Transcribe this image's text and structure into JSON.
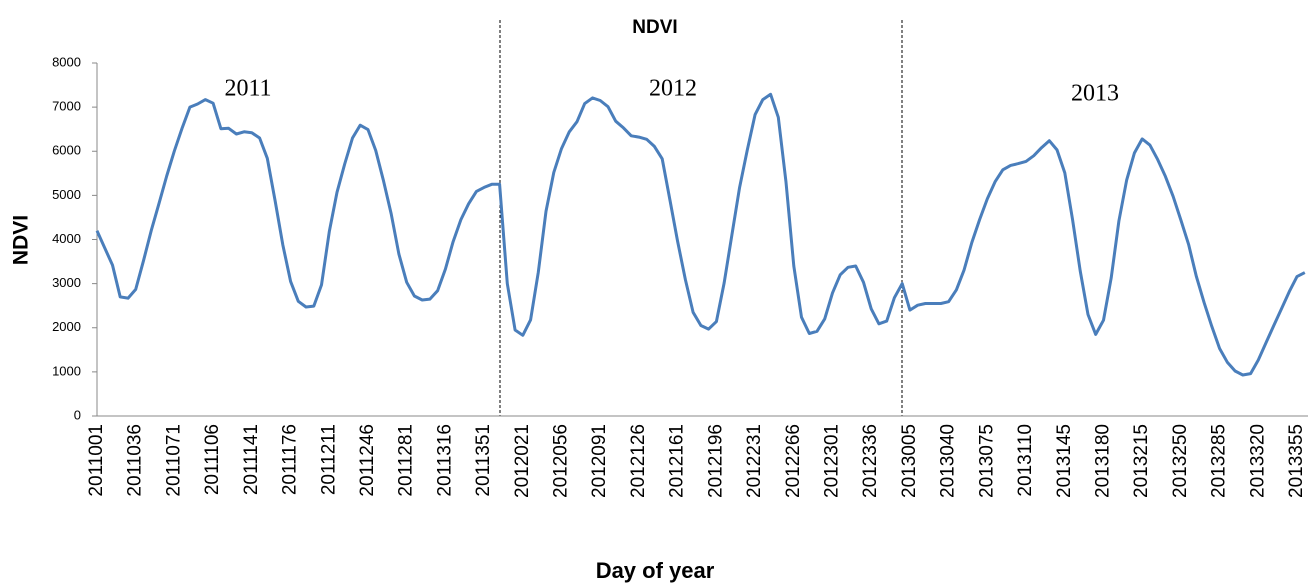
{
  "chart_data": {
    "type": "line",
    "title": "NDVI",
    "xlabel": "Day of year",
    "ylabel": "NDVI",
    "annotations": [
      "2011",
      "2012",
      "2013"
    ],
    "categories": [
      "2011001",
      null,
      null,
      null,
      null,
      "2011036",
      null,
      null,
      null,
      null,
      "2011071",
      null,
      null,
      null,
      null,
      "2011106",
      null,
      null,
      null,
      null,
      "2011141",
      null,
      null,
      null,
      null,
      "2011176",
      null,
      null,
      null,
      null,
      "2011211",
      null,
      null,
      null,
      null,
      "2011246",
      null,
      null,
      null,
      null,
      "2011281",
      null,
      null,
      null,
      null,
      "2011316",
      null,
      null,
      null,
      null,
      "2011351",
      null,
      null,
      null,
      null,
      "2012021",
      null,
      null,
      null,
      null,
      "2012056",
      null,
      null,
      null,
      null,
      "2012091",
      null,
      null,
      null,
      null,
      "2012126",
      null,
      null,
      null,
      null,
      "2012161",
      null,
      null,
      null,
      null,
      "2012196",
      null,
      null,
      null,
      null,
      "2012231",
      null,
      null,
      null,
      null,
      "2012266",
      null,
      null,
      null,
      null,
      "2012301",
      null,
      null,
      null,
      null,
      "2012336",
      null,
      null,
      null,
      null,
      "2013005",
      null,
      null,
      null,
      null,
      "2013040",
      null,
      null,
      null,
      null,
      "2013075",
      null,
      null,
      null,
      null,
      "2013110",
      null,
      null,
      null,
      null,
      "2013145",
      null,
      null,
      null,
      null,
      "2013180",
      null,
      null,
      null,
      null,
      "2013215",
      null,
      null,
      null,
      null,
      "2013250",
      null,
      null,
      null,
      null,
      "2013285",
      null,
      null,
      null,
      null,
      "2013320",
      null,
      null,
      null,
      null,
      "2013355",
      null
    ],
    "series": [
      {
        "name": "NDVI",
        "color": "#4a7ebb",
        "values": [
          4200,
          3810,
          3420,
          2700,
          2670,
          2870,
          3520,
          4200,
          4810,
          5440,
          6010,
          6530,
          7000,
          7070,
          7170,
          7090,
          6510,
          6520,
          6390,
          6440,
          6420,
          6300,
          5840,
          4880,
          3880,
          3050,
          2600,
          2470,
          2490,
          2970,
          4180,
          5070,
          5710,
          6300,
          6590,
          6490,
          6020,
          5330,
          4580,
          3670,
          3030,
          2720,
          2630,
          2650,
          2840,
          3330,
          3950,
          4450,
          4810,
          5090,
          5180,
          5250,
          5250,
          3000,
          1950,
          1830,
          2180,
          3260,
          4640,
          5520,
          6060,
          6440,
          6670,
          7080,
          7210,
          7150,
          7010,
          6680,
          6530,
          6350,
          6320,
          6270,
          6110,
          5830,
          4900,
          3960,
          3090,
          2350,
          2050,
          1970,
          2140,
          3010,
          4090,
          5180,
          6030,
          6830,
          7170,
          7290,
          6770,
          5300,
          3400,
          2240,
          1870,
          1920,
          2200,
          2790,
          3200,
          3370,
          3400,
          3030,
          2430,
          2090,
          2150,
          2680,
          3000,
          2400,
          2510,
          2550,
          2550,
          2550,
          2590,
          2860,
          3310,
          3930,
          4450,
          4920,
          5310,
          5580,
          5680,
          5720,
          5770,
          5900,
          6080,
          6240,
          6030,
          5510,
          4460,
          3290,
          2300,
          1850,
          2170,
          3130,
          4420,
          5350,
          5960,
          6280,
          6140,
          5810,
          5430,
          4980,
          4440,
          3890,
          3160,
          2570,
          2030,
          1530,
          1220,
          1020,
          930,
          960,
          1270,
          1660,
          2050,
          2430,
          2820,
          3160,
          3250
        ]
      }
    ],
    "ylim": [
      0,
      8000
    ],
    "yticks": [
      0,
      1000,
      2000,
      3000,
      4000,
      5000,
      6000,
      7000,
      8000
    ],
    "grid": false
  }
}
